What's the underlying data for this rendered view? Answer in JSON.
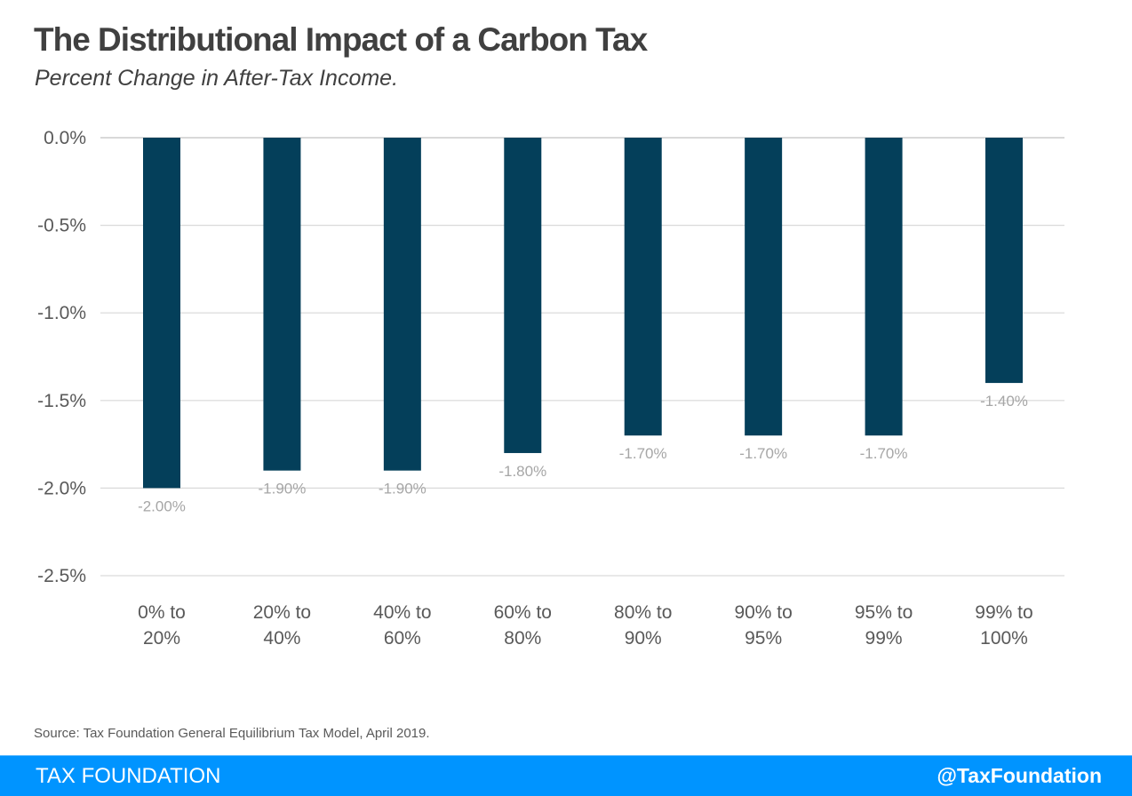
{
  "header": {
    "title": "The Distributional Impact of a Carbon Tax",
    "subtitle": "Percent Change in After-Tax Income."
  },
  "source": "Source: Tax Foundation General Equilibrium Tax Model, April 2019.",
  "footer": {
    "brand": "TAX FOUNDATION",
    "handle": "@TaxFoundation",
    "color": "#0094ff"
  },
  "chart_data": {
    "type": "bar",
    "title": "The Distributional Impact of a Carbon Tax",
    "subtitle": "Percent Change in After-Tax Income.",
    "xlabel": "",
    "ylabel": "",
    "categories": [
      [
        "0% to",
        "20%"
      ],
      [
        "20% to",
        "40%"
      ],
      [
        "40% to",
        "60%"
      ],
      [
        "60% to",
        "80%"
      ],
      [
        "80% to",
        "90%"
      ],
      [
        "90% to",
        "95%"
      ],
      [
        "95% to",
        "99%"
      ],
      [
        "99% to",
        "100%"
      ]
    ],
    "values": [
      -2.0,
      -1.9,
      -1.9,
      -1.8,
      -1.7,
      -1.7,
      -1.7,
      -1.4
    ],
    "data_labels": [
      "-2.00%",
      "-1.90%",
      "-1.90%",
      "-1.80%",
      "-1.70%",
      "-1.70%",
      "-1.70%",
      "-1.40%"
    ],
    "ylim": [
      -2.5,
      0.0
    ],
    "yticks": [
      0.0,
      -0.5,
      -1.0,
      -1.5,
      -2.0,
      -2.5
    ],
    "ytick_labels": [
      "0.0%",
      "-0.5%",
      "-1.0%",
      "-1.5%",
      "-2.0%",
      "-2.5%"
    ],
    "grid": true,
    "legend": "none",
    "bar_color": "#043f5a",
    "grid_color": "#d9d9d9"
  }
}
